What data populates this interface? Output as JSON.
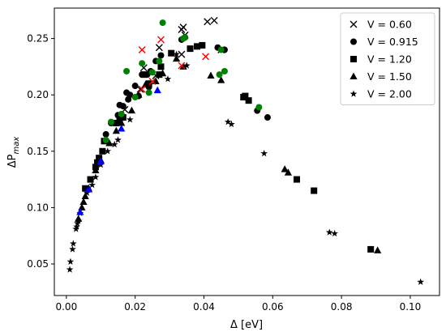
{
  "chart_data": {
    "type": "scatter",
    "title": "",
    "xlabel": "Δ [eV]",
    "ylabel_main": "ΔP",
    "ylabel_sub": "max",
    "xlim": [
      -0.0035,
      0.1085
    ],
    "ylim": [
      0.022,
      0.277
    ],
    "x_ticks": [
      0.0,
      0.02,
      0.04,
      0.06,
      0.08,
      0.1
    ],
    "x_tick_labels": [
      "0.00",
      "0.02",
      "0.04",
      "0.06",
      "0.08",
      "0.10"
    ],
    "y_ticks": [
      0.05,
      0.1,
      0.15,
      0.2,
      0.25
    ],
    "y_tick_labels": [
      "0.05",
      "0.10",
      "0.15",
      "0.20",
      "0.25"
    ],
    "grid": false,
    "legend_position": "top-right",
    "legend": [
      {
        "label": "V = 0.60",
        "marker": "x"
      },
      {
        "label": "V = 0.915",
        "marker": "circle"
      },
      {
        "label": "V = 1.20",
        "marker": "square"
      },
      {
        "label": "V = 1.50",
        "marker": "triangle"
      },
      {
        "label": "V = 2.00",
        "marker": "star"
      }
    ],
    "series": [
      {
        "name": "V = 0.60",
        "marker": "x",
        "points": [
          [
            0.027,
            0.242
          ],
          [
            0.0335,
            0.258
          ],
          [
            0.034,
            0.26
          ],
          [
            0.0345,
            0.253
          ],
          [
            0.041,
            0.265
          ],
          [
            0.043,
            0.266
          ],
          [
            0.045,
            0.24
          ],
          [
            0.0225,
            0.224
          ],
          [
            0.017,
            0.187
          ],
          [
            0.0215,
            0.205
          ],
          [
            0.0335,
            0.236
          ],
          [
            0.026,
            0.217
          ]
        ]
      },
      {
        "name": "V = 0.915",
        "marker": "circle",
        "points": [
          [
            0.0115,
            0.165
          ],
          [
            0.013,
            0.175
          ],
          [
            0.015,
            0.182
          ],
          [
            0.0155,
            0.191
          ],
          [
            0.0165,
            0.19
          ],
          [
            0.0175,
            0.202
          ],
          [
            0.0185,
            0.2
          ],
          [
            0.02,
            0.208
          ],
          [
            0.022,
            0.218
          ],
          [
            0.0235,
            0.218
          ],
          [
            0.0245,
            0.221
          ],
          [
            0.026,
            0.23
          ],
          [
            0.0275,
            0.235
          ],
          [
            0.0335,
            0.249
          ],
          [
            0.0345,
            0.251
          ],
          [
            0.044,
            0.242
          ],
          [
            0.046,
            0.24
          ],
          [
            0.0555,
            0.186
          ],
          [
            0.0585,
            0.18
          ],
          [
            0.024,
            0.207
          ],
          [
            0.021,
            0.199
          ],
          [
            0.018,
            0.196
          ]
        ]
      },
      {
        "name": "V = 1.20",
        "marker": "square",
        "points": [
          [
            0.0055,
            0.117
          ],
          [
            0.007,
            0.125
          ],
          [
            0.0085,
            0.136
          ],
          [
            0.009,
            0.14
          ],
          [
            0.0095,
            0.144
          ],
          [
            0.0105,
            0.15
          ],
          [
            0.011,
            0.159
          ],
          [
            0.0145,
            0.175
          ],
          [
            0.0155,
            0.177
          ],
          [
            0.0165,
            0.18
          ],
          [
            0.024,
            0.21
          ],
          [
            0.027,
            0.218
          ],
          [
            0.0305,
            0.237
          ],
          [
            0.036,
            0.241
          ],
          [
            0.038,
            0.243
          ],
          [
            0.0395,
            0.244
          ],
          [
            0.0515,
            0.198
          ],
          [
            0.052,
            0.199
          ],
          [
            0.053,
            0.195
          ],
          [
            0.067,
            0.125
          ],
          [
            0.072,
            0.115
          ],
          [
            0.0885,
            0.063
          ],
          [
            0.0225,
            0.218
          ],
          [
            0.0275,
            0.225
          ]
        ]
      },
      {
        "name": "V = 1.50",
        "marker": "triangle",
        "points": [
          [
            0.0035,
            0.09
          ],
          [
            0.0045,
            0.1
          ],
          [
            0.005,
            0.105
          ],
          [
            0.0055,
            0.11
          ],
          [
            0.0065,
            0.117
          ],
          [
            0.0085,
            0.133
          ],
          [
            0.01,
            0.142
          ],
          [
            0.0125,
            0.157
          ],
          [
            0.0145,
            0.168
          ],
          [
            0.016,
            0.175
          ],
          [
            0.019,
            0.186
          ],
          [
            0.021,
            0.2
          ],
          [
            0.023,
            0.209
          ],
          [
            0.026,
            0.212
          ],
          [
            0.028,
            0.219
          ],
          [
            0.032,
            0.232
          ],
          [
            0.034,
            0.225
          ],
          [
            0.042,
            0.217
          ],
          [
            0.045,
            0.213
          ],
          [
            0.0635,
            0.134
          ],
          [
            0.0645,
            0.131
          ],
          [
            0.0905,
            0.062
          ]
        ]
      },
      {
        "name": "V = 2.00",
        "marker": "star",
        "points": [
          [
            0.001,
            0.045
          ],
          [
            0.0012,
            0.052
          ],
          [
            0.0018,
            0.063
          ],
          [
            0.002,
            0.068
          ],
          [
            0.0028,
            0.081
          ],
          [
            0.003,
            0.083
          ],
          [
            0.0032,
            0.086
          ],
          [
            0.0035,
            0.088
          ],
          [
            0.004,
            0.095
          ],
          [
            0.006,
            0.113
          ],
          [
            0.0075,
            0.12
          ],
          [
            0.0085,
            0.127
          ],
          [
            0.01,
            0.138
          ],
          [
            0.012,
            0.15
          ],
          [
            0.014,
            0.156
          ],
          [
            0.015,
            0.16
          ],
          [
            0.0185,
            0.178
          ],
          [
            0.0295,
            0.214
          ],
          [
            0.032,
            0.236
          ],
          [
            0.047,
            0.176
          ],
          [
            0.048,
            0.174
          ],
          [
            0.0575,
            0.148
          ],
          [
            0.0765,
            0.078
          ],
          [
            0.078,
            0.077
          ],
          [
            0.103,
            0.034
          ],
          [
            0.035,
            0.226
          ]
        ]
      },
      {
        "name": "",
        "color": "#008000",
        "marker": "circle",
        "points": [
          [
            0.0115,
            0.16
          ],
          [
            0.013,
            0.176
          ],
          [
            0.016,
            0.183
          ],
          [
            0.0175,
            0.221
          ],
          [
            0.02,
            0.198
          ],
          [
            0.022,
            0.228
          ],
          [
            0.024,
            0.202
          ],
          [
            0.025,
            0.22
          ],
          [
            0.028,
            0.264
          ],
          [
            0.034,
            0.25
          ],
          [
            0.0345,
            0.251
          ],
          [
            0.0445,
            0.218
          ],
          [
            0.046,
            0.221
          ],
          [
            0.056,
            0.189
          ],
          [
            0.027,
            0.23
          ],
          [
            0.045,
            0.24
          ]
        ]
      },
      {
        "name": "",
        "color": "#ff0000",
        "marker": "x",
        "points": [
          [
            0.022,
            0.24
          ],
          [
            0.0275,
            0.249
          ],
          [
            0.0335,
            0.226
          ],
          [
            0.0405,
            0.234
          ],
          [
            0.022,
            0.205
          ],
          [
            0.025,
            0.212
          ]
        ]
      },
      {
        "name": "",
        "color": "#0000ff",
        "marker": "triangle",
        "points": [
          [
            0.004,
            0.096
          ],
          [
            0.0065,
            0.116
          ],
          [
            0.01,
            0.141
          ],
          [
            0.016,
            0.17
          ],
          [
            0.0265,
            0.204
          ]
        ]
      }
    ]
  }
}
